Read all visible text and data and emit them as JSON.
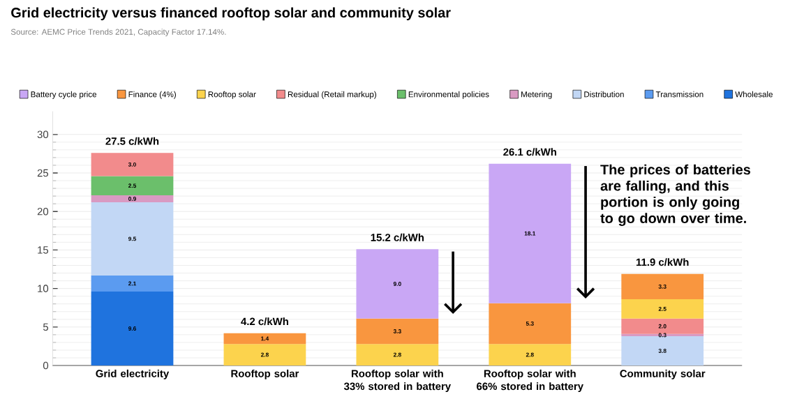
{
  "chart_data": {
    "type": "bar",
    "stacked": true,
    "title": "Grid electricity versus financed rooftop solar and community solar",
    "subtitle": "Source: AEMC Price Trends 2021, Capacity Factor 17.14%.",
    "categories": [
      "Grid electricity",
      "Rooftop solar",
      "Rooftop solar with 33% stored in battery",
      "Rooftop solar with 66% stored in battery",
      "Community solar"
    ],
    "series": [
      {
        "name": "Wholesale",
        "color": "#1f73de",
        "values": [
          9.6,
          null,
          null,
          null,
          null
        ],
        "value_labels": [
          "9.6",
          null,
          null,
          null,
          null
        ]
      },
      {
        "name": "Transmission",
        "color": "#5b9bf0",
        "values": [
          2.1,
          null,
          null,
          null,
          null
        ],
        "value_labels": [
          "2.1",
          null,
          null,
          null,
          null
        ]
      },
      {
        "name": "Distribution",
        "color": "#c2d7f5",
        "values": [
          9.5,
          null,
          null,
          null,
          3.8
        ],
        "value_labels": [
          "9.5",
          null,
          null,
          null,
          "3.8"
        ]
      },
      {
        "name": "Metering",
        "color": "#d99ac2",
        "values": [
          0.9,
          null,
          null,
          null,
          0.3
        ],
        "value_labels": [
          "0.9",
          null,
          null,
          null,
          "0.3"
        ]
      },
      {
        "name": "Environmental policies",
        "color": "#6bbf6b",
        "values": [
          2.5,
          null,
          null,
          null,
          null
        ],
        "value_labels": [
          "2.5",
          null,
          null,
          null,
          null
        ]
      },
      {
        "name": "Residual (Retail markup)",
        "color": "#f28b8c",
        "values": [
          3.0,
          null,
          null,
          null,
          2.0
        ],
        "value_labels": [
          "3.0",
          null,
          null,
          null,
          "2.0"
        ]
      },
      {
        "name": "Rooftop solar",
        "color": "#fcd34d",
        "values": [
          null,
          2.8,
          2.8,
          2.8,
          2.5
        ],
        "value_labels": [
          null,
          "2.8",
          "2.8",
          "2.8",
          "2.5"
        ]
      },
      {
        "name": "Finance (4%)",
        "color": "#f9963f",
        "values": [
          null,
          1.4,
          3.3,
          5.3,
          3.3
        ],
        "value_labels": [
          null,
          "1.4",
          "3.3",
          "5.3",
          "3.3"
        ]
      },
      {
        "name": "Battery cycle price",
        "color": "#c9a7f5",
        "values": [
          null,
          null,
          9.0,
          18.1,
          null
        ],
        "value_labels": [
          null,
          null,
          "9.0",
          "18.1",
          null
        ]
      }
    ],
    "totals": [
      "27.5 c/kWh",
      "4.2 c/kWh",
      "15.2 c/kWh",
      "26.1 c/kWh",
      "11.9 c/kWh"
    ],
    "ylim": [
      0,
      33
    ],
    "yticks": [
      0,
      5,
      10,
      15,
      20,
      25,
      30
    ],
    "grid": "y",
    "legend": "top",
    "annotations": [
      "The prices of batteries are falling, and this portion is only going to go down over time."
    ]
  }
}
